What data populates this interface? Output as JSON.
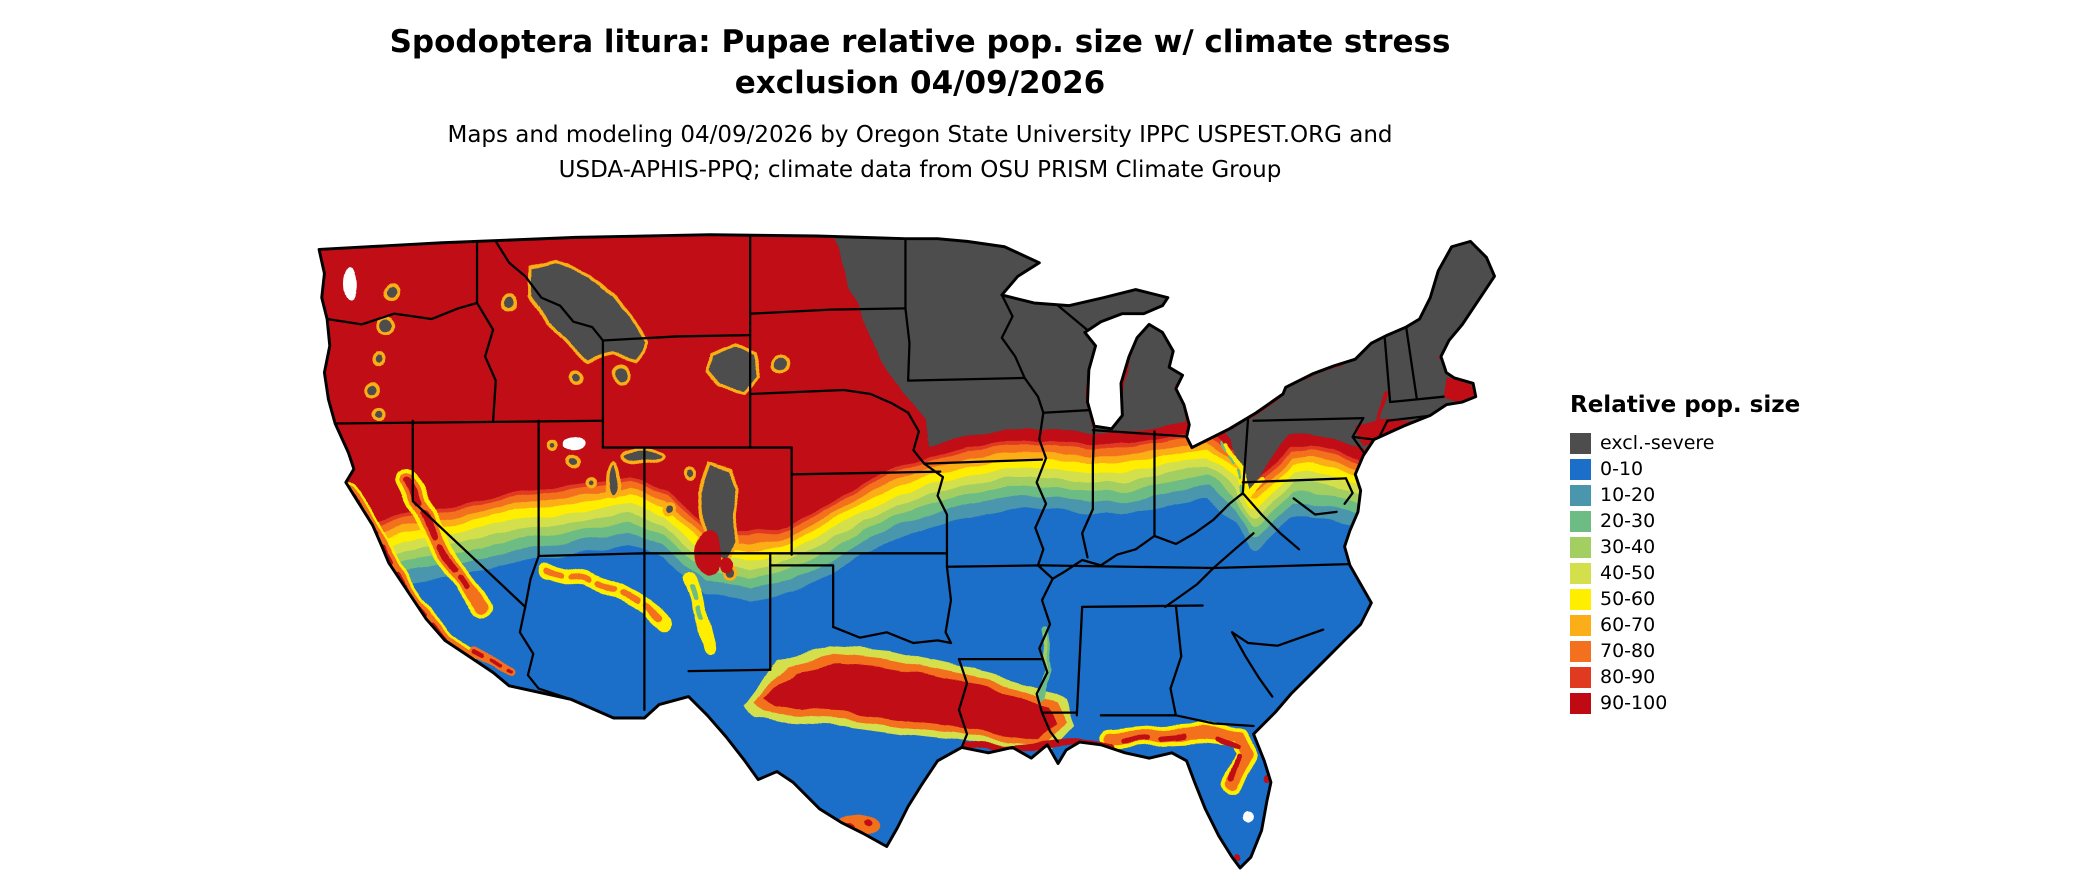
{
  "figure": {
    "title_line1": "Spodoptera litura: Pupae relative pop. size w/ climate stress",
    "title_line2": "exclusion 04/09/2026",
    "subtitle_line1": "Maps and modeling 04/09/2026 by Oregon State University IPPC USPEST.ORG and",
    "subtitle_line2": "USDA-APHIS-PPQ; climate data from OSU PRISM Climate Group"
  },
  "legend": {
    "title": "Relative pop. size",
    "items": [
      {
        "label": "excl.-severe",
        "color": "#4d4d4d"
      },
      {
        "label": "0-10",
        "color": "#1b6fc8"
      },
      {
        "label": "10-20",
        "color": "#4a96ad"
      },
      {
        "label": "20-30",
        "color": "#6cbc84"
      },
      {
        "label": "30-40",
        "color": "#a3cf62"
      },
      {
        "label": "40-50",
        "color": "#d3e04b"
      },
      {
        "label": "50-60",
        "color": "#ffee00"
      },
      {
        "label": "60-70",
        "color": "#fbae17"
      },
      {
        "label": "70-80",
        "color": "#f3701e"
      },
      {
        "label": "80-90",
        "color": "#e03a20"
      },
      {
        "label": "90-100",
        "color": "#c00a13"
      }
    ]
  },
  "map": {
    "border_color": "#000000",
    "water_color": "#ffffff"
  }
}
